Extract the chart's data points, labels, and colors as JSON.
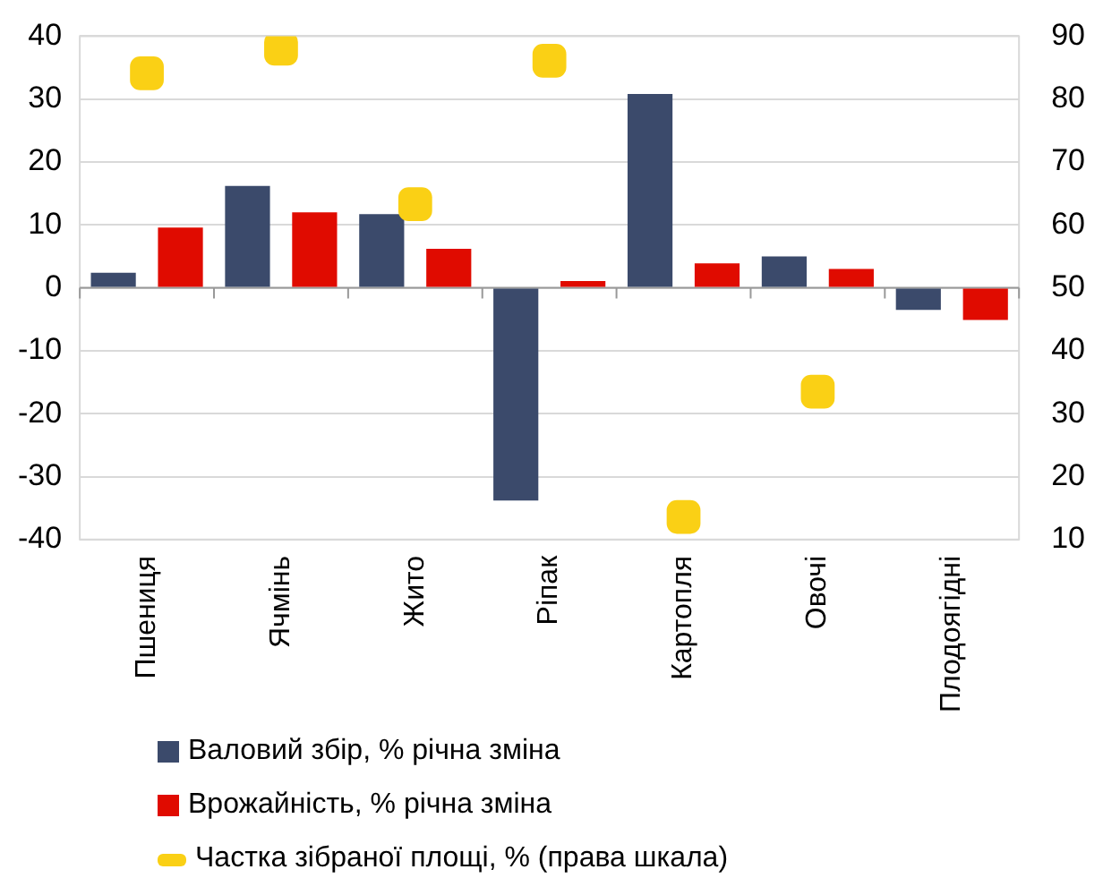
{
  "chart_data": {
    "type": "bar",
    "categories": [
      "Пшениця",
      "Ячмінь",
      "Жито",
      "Ріпак",
      "Картопля",
      "Овочі",
      "Плодоягідні"
    ],
    "series": [
      {
        "name": "Валовий збір, % річна зміна",
        "color": "#3b4a6b",
        "values": [
          2.4,
          16.2,
          11.7,
          -33.8,
          30.8,
          5.0,
          -3.5
        ]
      },
      {
        "name": "Врожайність, % річна зміна",
        "color": "#e00b00",
        "values": [
          9.6,
          12.0,
          6.2,
          1.1,
          3.9,
          3.0,
          -5.1
        ]
      },
      {
        "name": "Частка зібраної площі, % (права шкала)",
        "color": "#fad015",
        "type": "scatter",
        "axis": "y2",
        "values": [
          84.1,
          88.0,
          63.3,
          86.1,
          13.6,
          33.5,
          null
        ]
      }
    ],
    "ylim": [
      -40,
      40
    ],
    "yticks": [
      -40,
      -30,
      -20,
      -10,
      0,
      10,
      20,
      30,
      40
    ],
    "y2lim": [
      10,
      90
    ],
    "y2ticks": [
      10,
      20,
      30,
      40,
      50,
      60,
      70,
      80,
      90
    ],
    "grid": "y",
    "legend": "bottom"
  }
}
